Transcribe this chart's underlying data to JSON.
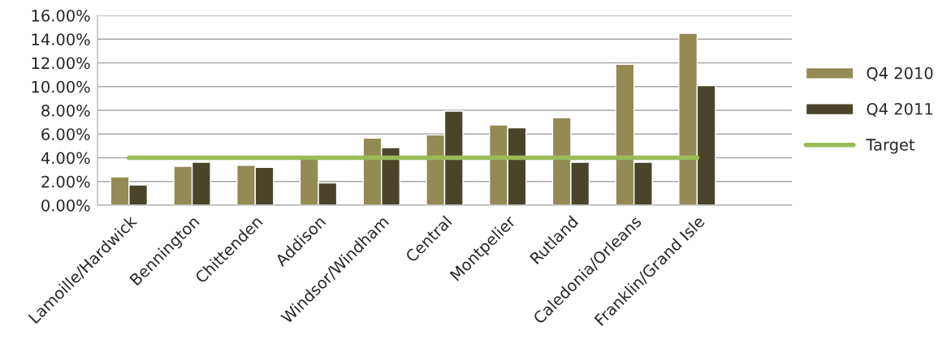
{
  "chart_data": {
    "type": "bar",
    "categories": [
      "Lamoille/Hardwick",
      "Bennington",
      "Chittenden",
      "Addison",
      "Windsor/Windham",
      "Central",
      "Montpelier",
      "Rutland",
      "Caledonia/Orleans",
      "Franklin/Grand Isle",
      null
    ],
    "series": [
      {
        "name": "Q4 2010",
        "color": "#948a54",
        "values": [
          2.39,
          3.28,
          3.37,
          4.0,
          5.65,
          5.92,
          6.77,
          7.38,
          11.87,
          14.49,
          null
        ]
      },
      {
        "name": "Q4 2011",
        "color": "#4a452a",
        "values": [
          1.71,
          3.62,
          3.19,
          1.87,
          4.85,
          7.93,
          6.52,
          3.62,
          3.62,
          10.09,
          null
        ]
      },
      {
        "name": "Target",
        "type": "line",
        "color": "#9bbb59",
        "values": [
          4,
          4,
          4,
          4,
          4,
          4,
          4,
          4,
          4,
          4,
          null
        ]
      }
    ],
    "ylim": [
      0,
      16
    ],
    "yticks": [
      {
        "value": 0,
        "label": "0.00%"
      },
      {
        "value": 2,
        "label": "2.00%"
      },
      {
        "value": 4,
        "label": "4.00%"
      },
      {
        "value": 6,
        "label": "6.00%"
      },
      {
        "value": 8,
        "label": "8.00%"
      },
      {
        "value": 10,
        "label": "10.00%"
      },
      {
        "value": 12,
        "label": "12.00%"
      },
      {
        "value": 14,
        "label": "14.00%"
      },
      {
        "value": 16,
        "label": "16.00%"
      }
    ],
    "grid": "y",
    "legend": "right"
  }
}
